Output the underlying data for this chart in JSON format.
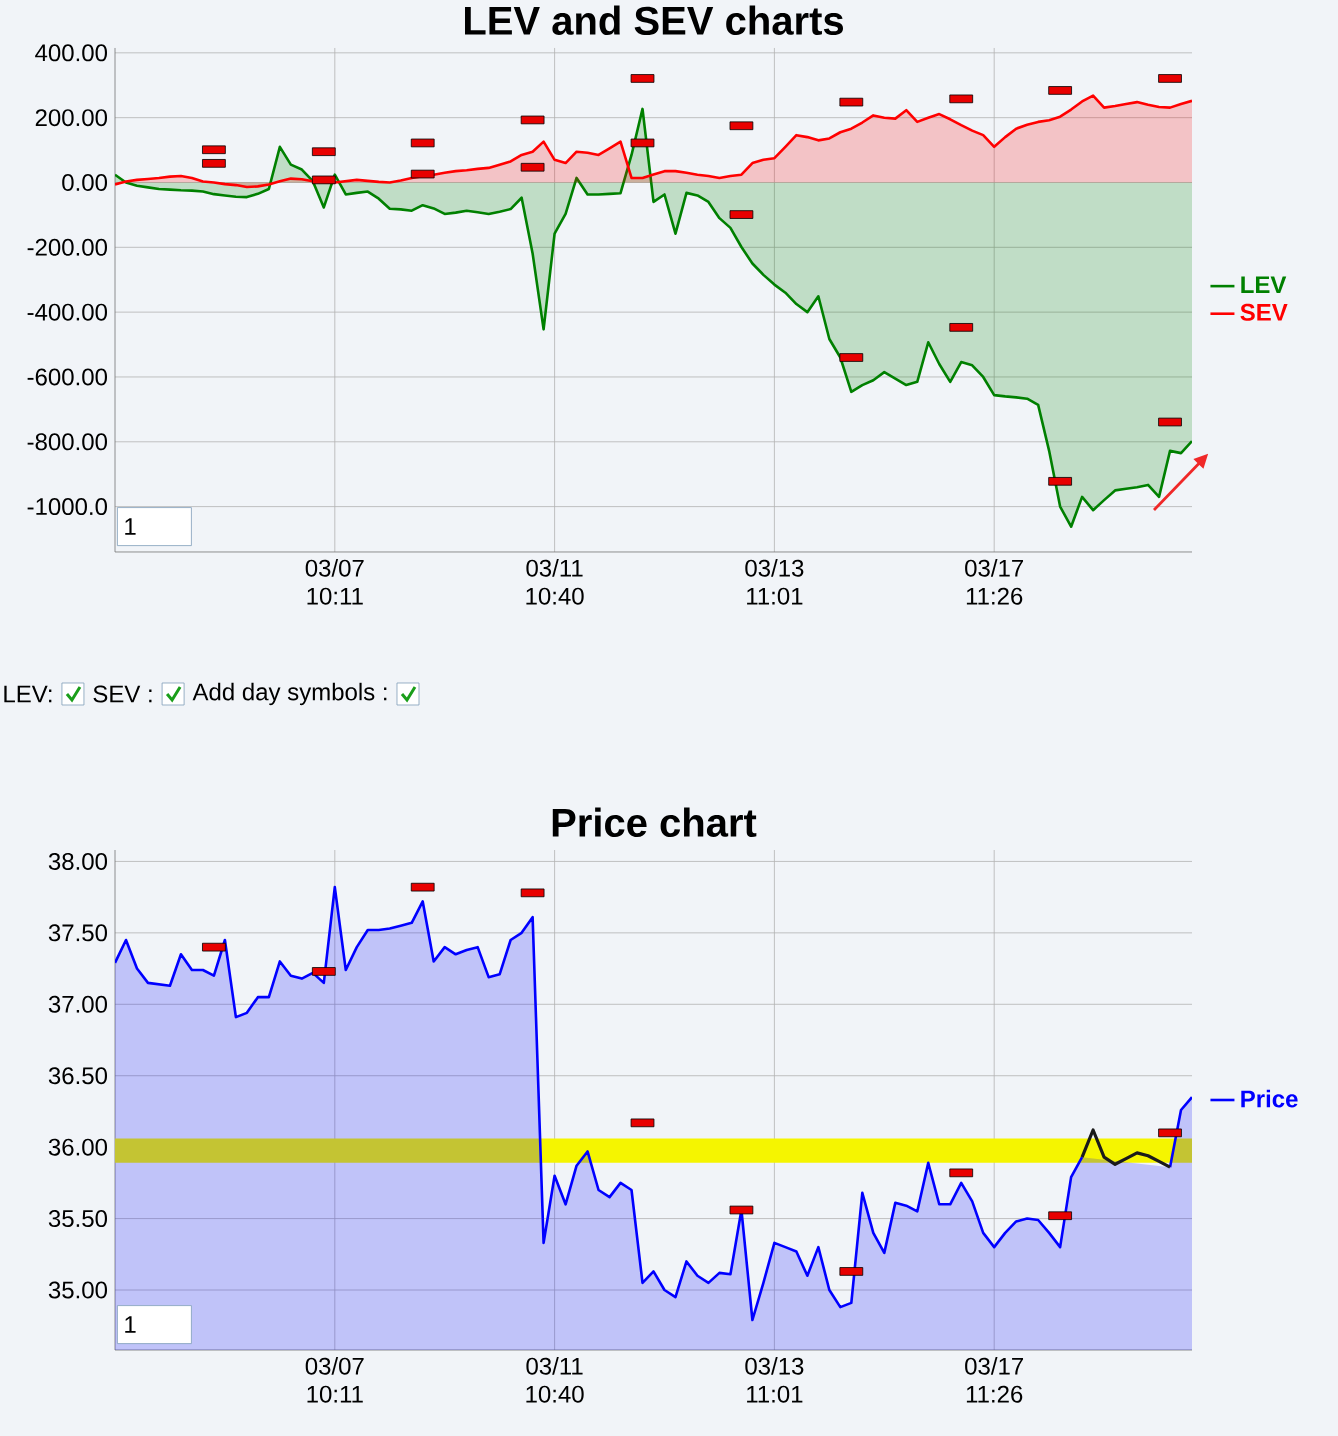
{
  "chart_data": [
    {
      "type": "area",
      "title": "LEV and SEV charts",
      "categories": [
        null,
        null,
        null,
        null,
        null,
        null,
        null,
        null,
        null,
        null,
        null,
        null,
        null,
        null,
        null,
        null,
        null,
        null,
        null,
        null,
        "03/07 10:11",
        null,
        null,
        null,
        null,
        null,
        null,
        null,
        null,
        null,
        null,
        null,
        null,
        null,
        null,
        null,
        null,
        null,
        null,
        null,
        "03/11 10:40",
        null,
        null,
        null,
        null,
        null,
        null,
        null,
        null,
        null,
        null,
        null,
        null,
        null,
        null,
        null,
        null,
        null,
        null,
        null,
        "03/13 11:01",
        null,
        null,
        null,
        null,
        null,
        null,
        null,
        null,
        null,
        null,
        null,
        null,
        null,
        null,
        null,
        null,
        null,
        null,
        null,
        "03/17 11:26",
        null,
        null,
        null,
        null,
        null,
        null,
        null,
        null,
        null,
        null,
        null,
        null,
        null,
        null,
        null,
        null,
        null,
        null
      ],
      "ylim": [
        -1140,
        415
      ],
      "yticks": [
        {
          "value": -1000,
          "label": "-1000.0"
        },
        {
          "value": -800,
          "label": "-800.00"
        },
        {
          "value": -600,
          "label": "-600.00"
        },
        {
          "value": -400,
          "label": "-400.00"
        },
        {
          "value": -200,
          "label": "-200.00"
        },
        {
          "value": 0,
          "label": "0.00"
        },
        {
          "value": 200,
          "label": "200.00"
        },
        {
          "value": 400,
          "label": "400.00"
        }
      ],
      "grid": true,
      "legend": "right",
      "annotations": [
        "1",
        "LEV:",
        "SEV :",
        "Add day symbols :"
      ],
      "series": [
        {
          "name": "LEV",
          "color": "#008000",
          "values": [
            24,
            0,
            -10,
            -15,
            -20,
            -22,
            -24,
            -25,
            -28,
            -36,
            -40,
            -44,
            -45,
            -35,
            -20,
            110,
            55,
            40,
            4,
            -77,
            24,
            -37,
            -32,
            -28,
            -50,
            -81,
            -83,
            -87,
            -70,
            -80,
            -97,
            -93,
            -87,
            -92,
            -97,
            -90,
            -82,
            -47,
            -219,
            -453,
            -158,
            -97,
            14,
            -37,
            -37,
            -35,
            -33,
            85,
            227,
            -60,
            -37,
            -158,
            -32,
            -40,
            -60,
            -110,
            -140,
            -199,
            -250,
            -285,
            -315,
            -340,
            -375,
            -400,
            -351,
            -483,
            -540,
            -646,
            -625,
            -610,
            -585,
            -605,
            -625,
            -615,
            -493,
            -560,
            -615,
            -554,
            -564,
            -600,
            -656,
            -660,
            -663,
            -667,
            -686,
            -828,
            -1000,
            -1062,
            -970,
            -1011,
            -980,
            -950,
            -945,
            -940,
            -933,
            -970,
            -828,
            -835,
            -798
          ]
        },
        {
          "name": "SEV",
          "color": "#ff0000",
          "values": [
            -6,
            3,
            8,
            11,
            14,
            18,
            20,
            14,
            3,
            0,
            -5,
            -8,
            -14,
            -12,
            -6,
            4,
            12,
            10,
            4,
            2,
            0,
            4,
            8,
            5,
            2,
            0,
            6,
            14,
            19,
            24,
            30,
            35,
            38,
            42,
            45,
            55,
            65,
            85,
            95,
            126,
            70,
            60,
            95,
            92,
            85,
            105,
            126,
            14,
            14,
            25,
            35,
            35,
            30,
            24,
            20,
            14,
            20,
            24,
            60,
            70,
            75,
            110,
            146,
            140,
            130,
            136,
            155,
            166,
            185,
            207,
            200,
            197,
            223,
            187,
            200,
            211,
            195,
            177,
            160,
            146,
            110,
            140,
            166,
            178,
            187,
            192,
            203,
            225,
            250,
            268,
            231,
            236,
            242,
            248,
            240,
            233,
            231,
            242,
            252
          ]
        },
        {
          "type": "scatter",
          "marker": "square",
          "color": "#e80000",
          "values": [
            null,
            null,
            null,
            null,
            null,
            null,
            null,
            null,
            null,
            101,
            null,
            null,
            null,
            null,
            null,
            null,
            null,
            null,
            null,
            95,
            null,
            null,
            null,
            null,
            null,
            null,
            null,
            null,
            122,
            null,
            null,
            null,
            null,
            null,
            null,
            null,
            null,
            null,
            193,
            null,
            null,
            null,
            null,
            null,
            null,
            null,
            null,
            null,
            321,
            null,
            null,
            null,
            null,
            null,
            null,
            null,
            null,
            175,
            null,
            null,
            null,
            null,
            null,
            null,
            null,
            null,
            null,
            248,
            null,
            null,
            null,
            null,
            null,
            null,
            null,
            null,
            null,
            258,
            null,
            null,
            null,
            null,
            null,
            null,
            null,
            null,
            284,
            null,
            null,
            null,
            null,
            null,
            null,
            null,
            null,
            null,
            321,
            null,
            null
          ]
        },
        {
          "type": "scatter",
          "marker": "square",
          "color": "#e80000",
          "values": [
            null,
            null,
            null,
            null,
            null,
            null,
            null,
            null,
            null,
            59,
            null,
            null,
            null,
            null,
            null,
            null,
            null,
            null,
            null,
            8,
            null,
            null,
            null,
            null,
            null,
            null,
            null,
            null,
            26,
            null,
            null,
            null,
            null,
            null,
            null,
            null,
            null,
            null,
            47,
            null,
            null,
            null,
            null,
            null,
            null,
            null,
            null,
            null,
            122,
            null,
            null,
            null,
            null,
            null,
            null,
            null,
            null,
            -99,
            null,
            null,
            null,
            null,
            null,
            null,
            null,
            null,
            null,
            -540,
            null,
            null,
            null,
            null,
            null,
            null,
            null,
            null,
            null,
            -447,
            null,
            null,
            null,
            null,
            null,
            null,
            null,
            null,
            -922,
            null,
            null,
            null,
            null,
            null,
            null,
            null,
            null,
            null,
            -739,
            null,
            null
          ]
        }
      ]
    },
    {
      "type": "area",
      "title": "Price chart",
      "categories": [
        null,
        null,
        null,
        null,
        null,
        null,
        null,
        null,
        null,
        null,
        null,
        null,
        null,
        null,
        null,
        null,
        null,
        null,
        null,
        null,
        "03/07 10:11",
        null,
        null,
        null,
        null,
        null,
        null,
        null,
        null,
        null,
        null,
        null,
        null,
        null,
        null,
        null,
        null,
        null,
        null,
        null,
        "03/11 10:40",
        null,
        null,
        null,
        null,
        null,
        null,
        null,
        null,
        null,
        null,
        null,
        null,
        null,
        null,
        null,
        null,
        null,
        null,
        null,
        "03/13 11:01",
        null,
        null,
        null,
        null,
        null,
        null,
        null,
        null,
        null,
        null,
        null,
        null,
        null,
        null,
        null,
        null,
        null,
        null,
        null,
        "03/17 11:26",
        null,
        null,
        null,
        null,
        null,
        null,
        null,
        null,
        null,
        null,
        null,
        null,
        null,
        null,
        null,
        null,
        null,
        null
      ],
      "ylim": [
        34.58,
        38.08
      ],
      "yticks": [
        {
          "value": 35,
          "label": "35.00"
        },
        {
          "value": 35.5,
          "label": "35.50"
        },
        {
          "value": 36,
          "label": "36.00"
        },
        {
          "value": 36.5,
          "label": "36.50"
        },
        {
          "value": 37,
          "label": "37.00"
        },
        {
          "value": 37.5,
          "label": "37.50"
        },
        {
          "value": 38,
          "label": "38.00"
        }
      ],
      "grid": true,
      "legend": "right",
      "annotations": [
        "1"
      ],
      "bands": [
        {
          "axis": "y",
          "from": 35.89,
          "to": 36.06,
          "color": "#f5f500"
        }
      ],
      "series": [
        {
          "name": "Price",
          "color": "#0000ff",
          "values": [
            37.29,
            37.45,
            37.25,
            37.15,
            37.14,
            37.13,
            37.35,
            37.24,
            37.24,
            37.2,
            37.45,
            36.91,
            36.94,
            37.05,
            37.05,
            37.3,
            37.2,
            37.18,
            37.22,
            37.15,
            37.82,
            37.24,
            37.4,
            37.52,
            37.52,
            37.53,
            37.55,
            37.57,
            37.72,
            37.3,
            37.4,
            37.35,
            37.38,
            37.4,
            37.19,
            37.21,
            37.45,
            37.5,
            37.61,
            35.33,
            35.8,
            35.6,
            35.87,
            35.97,
            35.7,
            35.65,
            35.75,
            35.7,
            35.05,
            35.13,
            35.0,
            34.95,
            35.2,
            35.1,
            35.05,
            35.12,
            35.11,
            35.56,
            34.79,
            35.05,
            35.33,
            35.3,
            35.27,
            35.1,
            35.3,
            35.0,
            34.88,
            34.91,
            35.68,
            35.4,
            35.26,
            35.61,
            35.59,
            35.55,
            35.89,
            35.6,
            35.6,
            35.75,
            35.62,
            35.4,
            35.3,
            35.4,
            35.48,
            35.5,
            35.49,
            35.4,
            35.3,
            35.79,
            35.93,
            null,
            null,
            null,
            null,
            null,
            null,
            null,
            35.86,
            36.26,
            36.35
          ]
        },
        {
          "type": "line",
          "color": "#1a1a1a",
          "values": [
            null,
            null,
            null,
            null,
            null,
            null,
            null,
            null,
            null,
            null,
            null,
            null,
            null,
            null,
            null,
            null,
            null,
            null,
            null,
            null,
            null,
            null,
            null,
            null,
            null,
            null,
            null,
            null,
            null,
            null,
            null,
            null,
            null,
            null,
            null,
            null,
            null,
            null,
            null,
            null,
            null,
            null,
            null,
            null,
            null,
            null,
            null,
            null,
            null,
            null,
            null,
            null,
            null,
            null,
            null,
            null,
            null,
            null,
            null,
            null,
            null,
            null,
            null,
            null,
            null,
            null,
            null,
            null,
            null,
            null,
            null,
            null,
            null,
            null,
            null,
            null,
            null,
            null,
            null,
            null,
            null,
            null,
            null,
            null,
            null,
            null,
            null,
            null,
            35.93,
            36.12,
            35.93,
            35.88,
            35.92,
            35.96,
            35.94,
            35.9,
            35.86,
            null,
            null
          ]
        },
        {
          "type": "scatter",
          "marker": "square",
          "color": "#e80000",
          "values": [
            null,
            null,
            null,
            null,
            null,
            null,
            null,
            null,
            null,
            37.4,
            null,
            null,
            null,
            null,
            null,
            null,
            null,
            null,
            null,
            37.23,
            null,
            null,
            null,
            null,
            null,
            null,
            null,
            null,
            37.82,
            null,
            null,
            null,
            null,
            null,
            null,
            null,
            null,
            null,
            37.78,
            null,
            null,
            null,
            null,
            null,
            null,
            null,
            null,
            null,
            36.17,
            null,
            null,
            null,
            null,
            null,
            null,
            null,
            null,
            35.56,
            null,
            null,
            null,
            null,
            null,
            null,
            null,
            null,
            null,
            35.13,
            null,
            null,
            null,
            null,
            null,
            null,
            null,
            null,
            null,
            35.82,
            null,
            null,
            null,
            null,
            null,
            null,
            null,
            null,
            35.52,
            null,
            null,
            null,
            null,
            null,
            null,
            null,
            null,
            null,
            36.1,
            null,
            null
          ]
        }
      ]
    }
  ]
}
